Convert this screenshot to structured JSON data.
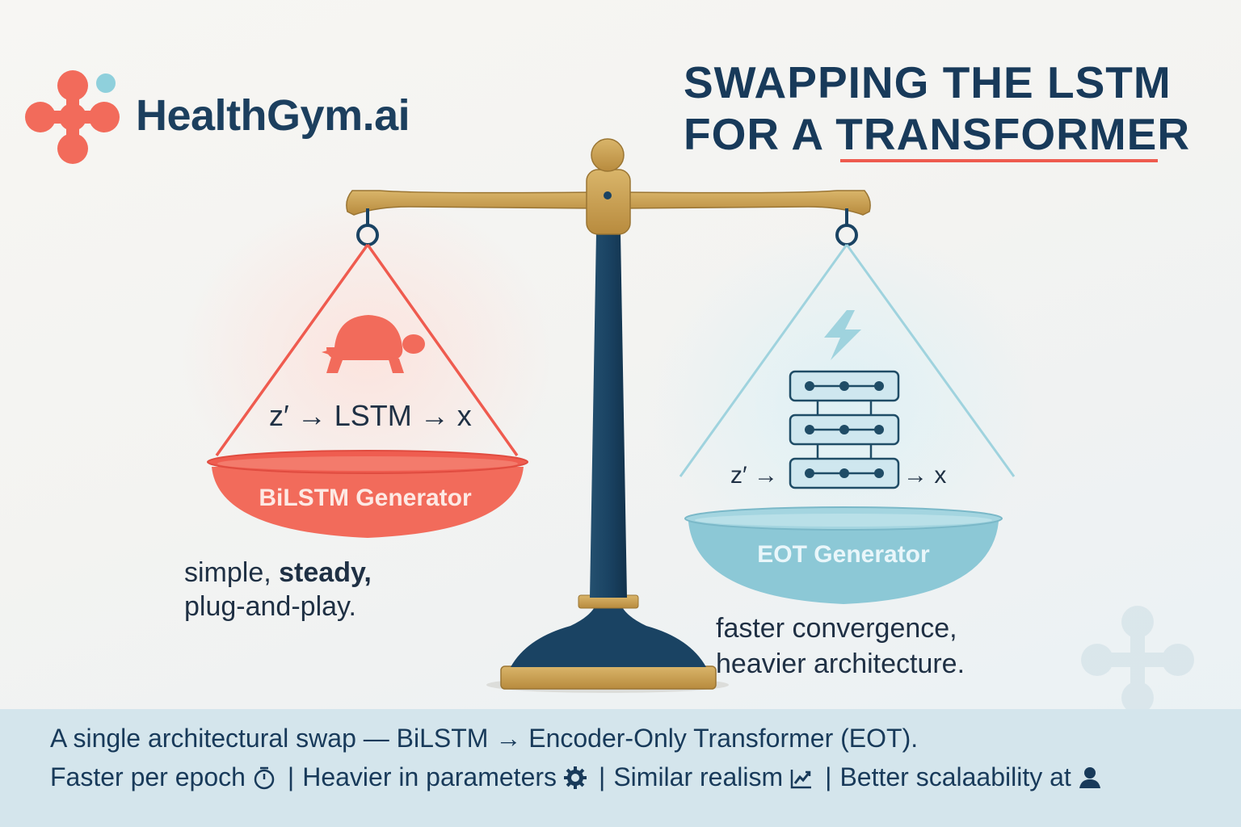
{
  "brand": {
    "name": "HealthGym.ai",
    "colors": {
      "coral": "#f26b5b",
      "teal": "#8fd0dc",
      "navy": "#1c3f5e"
    }
  },
  "title": {
    "line1": "SWAPPING THE LSTM",
    "line2": "FOR A TRANSFORMER",
    "accent": "#ee5b4f"
  },
  "left_pan": {
    "icon": "turtle-icon",
    "formula": "z′ → LSTM → x",
    "label": "BiLSTM Generator",
    "note_plain": "simple, ",
    "note_bold": "steady,",
    "note_line2": "plug-and-play.",
    "color": "#f26b5b"
  },
  "right_pan": {
    "icons": [
      "lightning-icon",
      "transformer-stack-icon"
    ],
    "formula_left": "z′ →",
    "formula_right": "→ x",
    "label": "EOT Generator",
    "note_line1": "faster convergence,",
    "note_line2": "heavier architecture.",
    "color": "#8cc8d6"
  },
  "footer": {
    "line1": "A single architectural swap — BiLSTM → Encoder-Only Transformer (EOT).",
    "item1": "Faster per epoch",
    "item1_icon": "stopwatch-icon",
    "item2": "Heavier in parameters",
    "item2_icon": "gear-icon",
    "item3": "Similar realism",
    "item3_icon": "trend-chart-icon",
    "item4": "Better scalaability at",
    "item4_icon": "person-icon",
    "separator": "|"
  }
}
